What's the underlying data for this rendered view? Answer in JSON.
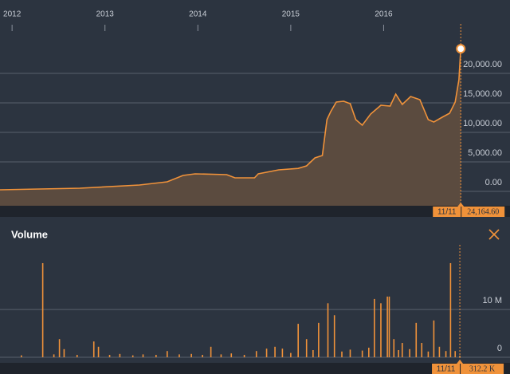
{
  "chart_data": [
    {
      "type": "area",
      "color": "#f0923a",
      "fill": "#5b4b3f",
      "x": [
        2011.87,
        2012.73,
        2013.37,
        2013.67,
        2013.84,
        2013.97,
        2014.31,
        2014.4,
        2014.61,
        2014.65,
        2014.87,
        2015.08,
        2015.17,
        2015.26,
        2015.34,
        2015.39,
        2015.43,
        2015.49,
        2015.57,
        2015.64,
        2015.7,
        2015.77,
        2015.86,
        2015.97,
        2016.07,
        2016.13,
        2016.2,
        2016.29,
        2016.39,
        2016.48,
        2016.54,
        2016.63,
        2016.71,
        2016.77,
        2016.81,
        2016.83
      ],
      "series": [
        {
          "values": [
            270,
            540,
            1080,
            1620,
            2700,
            2970,
            2840,
            2300,
            2300,
            2970,
            3650,
            3900,
            4320,
            5680,
            6080,
            12160,
            13510,
            15140,
            15270,
            14860,
            12160,
            11220,
            13110,
            14590,
            14460,
            16490,
            14730,
            16080,
            15540,
            12160,
            11760,
            12570,
            13240,
            15140,
            18920,
            24164.6
          ]
        }
      ],
      "xlim": [
        2011.87,
        2017.36
      ],
      "xticks": [
        2012,
        2013,
        2014,
        2015,
        2016
      ],
      "ylim": [
        -2430,
        27700
      ],
      "yticks": [
        {
          "value": 20000,
          "label": "20,000.00"
        },
        {
          "value": 15000,
          "label": "15,000.00"
        },
        {
          "value": 10000,
          "label": "10,000.00"
        },
        {
          "value": 5000,
          "label": "5,000.00"
        },
        {
          "value": 0,
          "label": "0.00"
        }
      ],
      "grid": true,
      "annotation": {
        "date": "11/11",
        "value": 24164.6,
        "label": "24,164.60"
      }
    },
    {
      "type": "bar",
      "title": "Volume",
      "color": "#f0923a",
      "x": [
        2012.1,
        2012.33,
        2012.45,
        2012.51,
        2012.56,
        2012.7,
        2012.88,
        2012.93,
        2013.05,
        2013.16,
        2013.3,
        2013.41,
        2013.55,
        2013.67,
        2013.8,
        2013.93,
        2014.05,
        2014.14,
        2014.25,
        2014.36,
        2014.5,
        2014.63,
        2014.74,
        2014.83,
        2014.91,
        2015.0,
        2015.08,
        2015.17,
        2015.24,
        2015.3,
        2015.4,
        2015.47,
        2015.55,
        2015.64,
        2015.77,
        2015.84,
        2015.9,
        2015.97,
        2016.04,
        2016.06,
        2016.11,
        2016.16,
        2016.2,
        2016.28,
        2016.35,
        2016.41,
        2016.48,
        2016.54,
        2016.6,
        2016.67,
        2016.72,
        2016.77,
        2016.82
      ],
      "series": [
        {
          "values": [
            400000,
            19700000,
            600000,
            3800000,
            1700000,
            500000,
            3300000,
            2200000,
            500000,
            700000,
            400000,
            600000,
            500000,
            1300000,
            600000,
            700000,
            500000,
            2200000,
            600000,
            800000,
            500000,
            1300000,
            1800000,
            2200000,
            1800000,
            900000,
            7000000,
            3800000,
            1500000,
            7200000,
            11300000,
            8800000,
            1200000,
            1600000,
            1400000,
            2000000,
            12200000,
            11300000,
            12700000,
            12700000,
            3800000,
            1500000,
            3000000,
            1700000,
            7200000,
            3000000,
            1200000,
            7700000,
            2200000,
            1300000,
            19700000,
            1300000,
            312200
          ]
        }
      ],
      "xlim": [
        2011.87,
        2017.36
      ],
      "ylim": [
        -1170000,
        22700000
      ],
      "yticks": [
        {
          "value": 10000000,
          "label": "10 M"
        },
        0
      ],
      "grid": true,
      "annotation": {
        "date": "11/11",
        "value": 312200,
        "label": "312.2 K"
      }
    }
  ]
}
